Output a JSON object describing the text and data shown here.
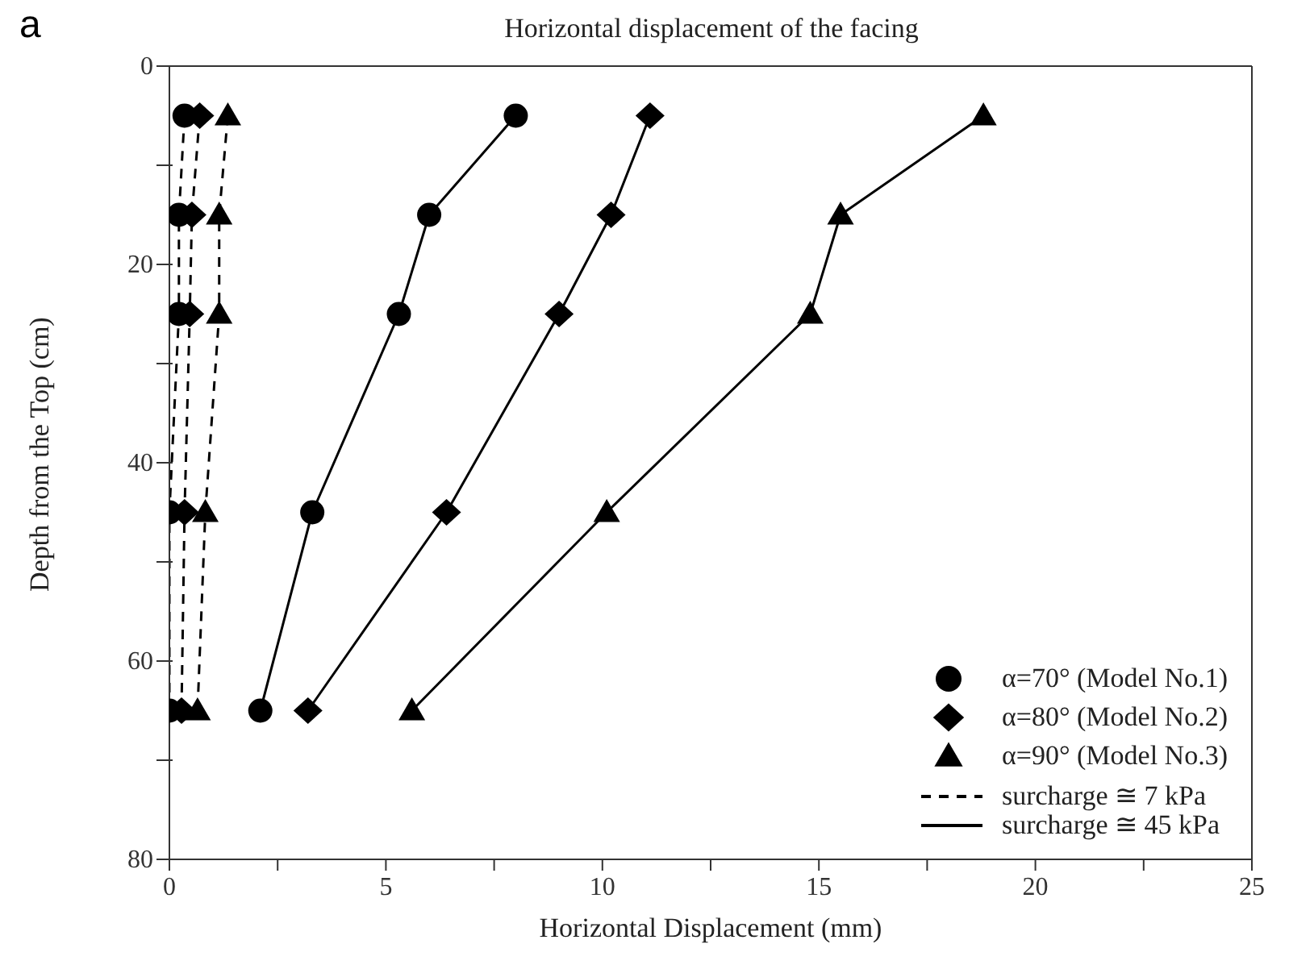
{
  "chart_data": {
    "type": "line",
    "title": "Horizontal displacement of the facing",
    "xlabel": "Horizontal Displacement (mm)",
    "ylabel": "Depth from the Top (cm)",
    "annotations": [
      "a",
      "surcharge ≅ 7 kPa",
      "surcharge ≅ 45 kPa"
    ],
    "xlim": [
      0,
      25
    ],
    "xticks": [
      0,
      {
        "value": 2.5,
        "label": null
      },
      5,
      {
        "value": 7.5,
        "label": null
      },
      10,
      {
        "value": 12.5,
        "label": null
      },
      15,
      {
        "value": 17.5,
        "label": null
      },
      20,
      {
        "value": 22.5,
        "label": null
      },
      25
    ],
    "ylim": [
      80,
      0
    ],
    "yticks": [
      0,
      {
        "value": 10,
        "label": null
      },
      20,
      {
        "value": 30,
        "label": null
      },
      40,
      {
        "value": 50,
        "label": null
      },
      60,
      {
        "value": 70,
        "label": null
      },
      80
    ],
    "legend": "bottom right",
    "series": [
      {
        "color": "#000000",
        "marker": "circle",
        "line_style": "dashed",
        "x": [
          0.35,
          0.22,
          0.22,
          0.0,
          0.0
        ],
        "values": [
          5,
          15,
          25,
          45,
          65
        ]
      },
      {
        "color": "#000000",
        "marker": "diamond",
        "line_style": "dashed",
        "x": [
          0.7,
          0.52,
          0.47,
          0.35,
          0.28
        ],
        "values": [
          5,
          15,
          25,
          45,
          65
        ]
      },
      {
        "color": "#000000",
        "marker": "triangle",
        "line_style": "dashed",
        "x": [
          1.35,
          1.15,
          1.15,
          0.83,
          0.65
        ],
        "values": [
          5,
          15,
          25,
          45,
          65
        ]
      },
      {
        "name": "α=70° (Model No.1)",
        "color": "#000000",
        "marker": "circle",
        "line_style": "solid",
        "x": [
          8.0,
          6.0,
          5.3,
          3.3,
          2.1
        ],
        "values": [
          5,
          15,
          25,
          45,
          65
        ]
      },
      {
        "name": "α=80° (Model No.2)",
        "color": "#000000",
        "marker": "diamond",
        "line_style": "solid",
        "x": [
          11.1,
          10.2,
          9.0,
          6.4,
          3.2
        ],
        "values": [
          5,
          15,
          25,
          45,
          65
        ]
      },
      {
        "name": "α=90° (Model No.3)",
        "color": "#000000",
        "marker": "triangle",
        "line_style": "solid",
        "x": [
          18.8,
          15.5,
          14.8,
          10.1,
          5.6
        ],
        "values": [
          5,
          15,
          25,
          45,
          65
        ]
      }
    ]
  }
}
